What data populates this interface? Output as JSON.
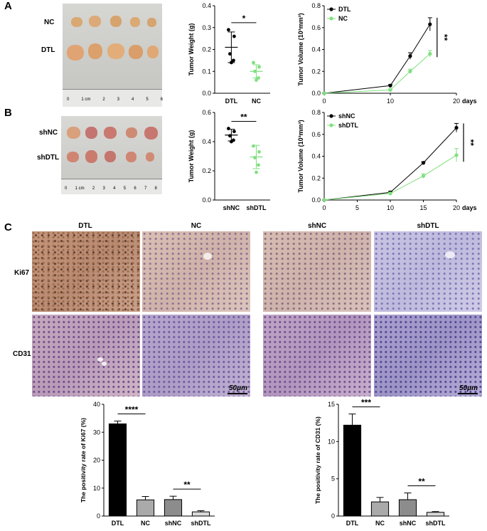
{
  "panels": {
    "A": "A",
    "B": "B",
    "C": "C"
  },
  "panelA": {
    "photo_rows": [
      "NC",
      "DTL"
    ],
    "ruler_labels": [
      "0",
      "1 cm",
      "2",
      "3",
      "4",
      "5",
      "6"
    ],
    "colors": {
      "dtl": "#000000",
      "nc": "#7fe07f"
    }
  },
  "panelB": {
    "photo_rows": [
      "shNC",
      "shDTL"
    ],
    "ruler_labels": [
      "0",
      "1 cm",
      "2",
      "3",
      "4",
      "5",
      "6",
      "7",
      "8"
    ],
    "colors": {
      "shnc": "#000000",
      "shdtl": "#7fe07f"
    }
  },
  "panelC": {
    "col_headers": [
      "DTL",
      "NC",
      "shNC",
      "shDTL"
    ],
    "row_labels": [
      "Ki67",
      "CD31"
    ],
    "scale_bar": "50μm"
  },
  "chart_data": [
    {
      "id": "A-weight",
      "type": "scatter",
      "title": "",
      "xlabel": "",
      "ylabel": "Tumor Weight (g)",
      "categories": [
        "DTL",
        "NC"
      ],
      "ylim": [
        0,
        0.4
      ],
      "yticks": [
        "0.0",
        "0.1",
        "0.2",
        "0.3",
        "0.4"
      ],
      "series": [
        {
          "name": "DTL",
          "points": [
            0.29,
            0.26,
            0.18,
            0.15,
            0.14
          ],
          "mean": 0.21,
          "sd": 0.07,
          "color": "#000000"
        },
        {
          "name": "NC",
          "points": [
            0.14,
            0.12,
            0.1,
            0.07,
            0.06
          ],
          "mean": 0.1,
          "sd": 0.03,
          "color": "#7fe07f"
        }
      ],
      "significance": "*"
    },
    {
      "id": "A-volume",
      "type": "line",
      "xlabel": "days",
      "ylabel": "Tumor Volume (10³mm³)",
      "x": [
        0,
        10,
        13,
        16
      ],
      "xticks": [
        "0",
        "10",
        "20"
      ],
      "xlim": [
        0,
        20
      ],
      "ylim": [
        0,
        0.8
      ],
      "yticks": [
        "0.0",
        "0.2",
        "0.4",
        "0.6",
        "0.8"
      ],
      "series": [
        {
          "name": "DTL",
          "values": [
            0,
            0.07,
            0.34,
            0.63
          ],
          "err": [
            0,
            0.01,
            0.03,
            0.06
          ],
          "color": "#000000"
        },
        {
          "name": "NC",
          "values": [
            0,
            0.03,
            0.2,
            0.36
          ],
          "err": [
            0,
            0.01,
            0.02,
            0.03
          ],
          "color": "#7fe07f"
        }
      ],
      "significance": "**",
      "legend": "top-left"
    },
    {
      "id": "B-weight",
      "type": "scatter",
      "xlabel": "",
      "ylabel": "Tumor Weight (g)",
      "categories": [
        "shNC",
        "shDTL"
      ],
      "ylim": [
        0,
        0.6
      ],
      "yticks": [
        "0.0",
        "0.2",
        "0.4",
        "0.6"
      ],
      "series": [
        {
          "name": "shNC",
          "points": [
            0.49,
            0.47,
            0.44,
            0.41,
            0.4
          ],
          "mean": 0.445,
          "sd": 0.04,
          "color": "#000000"
        },
        {
          "name": "shDTL",
          "points": [
            0.37,
            0.33,
            0.29,
            0.24,
            0.19
          ],
          "mean": 0.295,
          "sd": 0.08,
          "color": "#7fe07f"
        }
      ],
      "significance": "**"
    },
    {
      "id": "B-volume",
      "type": "line",
      "xlabel": "days",
      "ylabel": "Tumor Volume (10³mm³)",
      "x": [
        0,
        10,
        15,
        20
      ],
      "xticks": [
        "0",
        "5",
        "10",
        "15",
        "20"
      ],
      "xlim": [
        0,
        20
      ],
      "ylim": [
        0,
        0.8
      ],
      "yticks": [
        "0.0",
        "0.2",
        "0.4",
        "0.6",
        "0.8"
      ],
      "series": [
        {
          "name": "shNC",
          "values": [
            0,
            0.07,
            0.34,
            0.66
          ],
          "err": [
            0,
            0.01,
            0.01,
            0.04
          ],
          "color": "#000000"
        },
        {
          "name": "shDTL",
          "values": [
            0,
            0.06,
            0.22,
            0.41
          ],
          "err": [
            0,
            0.01,
            0.02,
            0.06
          ],
          "color": "#7fe07f"
        }
      ],
      "significance": "**",
      "legend": "top-left"
    },
    {
      "id": "C-ki67",
      "type": "bar",
      "ylabel": "The positivity rate of Ki67 (%)",
      "categories": [
        "DTL",
        "NC",
        "shNC",
        "shDTL"
      ],
      "values": [
        33,
        5.8,
        5.9,
        1.5
      ],
      "err": [
        1.0,
        1.2,
        1.2,
        0.4
      ],
      "colors": [
        "#000000",
        "#aaaaaa",
        "#8c8c8c",
        "#d9d9d9"
      ],
      "ylim": [
        0,
        40
      ],
      "yticks": [
        "0",
        "10",
        "20",
        "30",
        "40"
      ],
      "significance": [
        {
          "from": 0,
          "to": 1,
          "label": "****"
        },
        {
          "from": 2,
          "to": 3,
          "label": "**"
        }
      ]
    },
    {
      "id": "C-cd31",
      "type": "bar",
      "ylabel": "The positivity rate of CD31 (%)",
      "categories": [
        "DTL",
        "NC",
        "shNC",
        "shDTL"
      ],
      "values": [
        12.2,
        1.9,
        2.2,
        0.5
      ],
      "err": [
        1.5,
        0.6,
        0.9,
        0.1
      ],
      "colors": [
        "#000000",
        "#aaaaaa",
        "#8c8c8c",
        "#d9d9d9"
      ],
      "ylim": [
        0,
        15
      ],
      "yticks": [
        "0",
        "5",
        "10",
        "15"
      ],
      "significance": [
        {
          "from": 0,
          "to": 1,
          "label": "***"
        },
        {
          "from": 2,
          "to": 3,
          "label": "**"
        }
      ]
    }
  ]
}
